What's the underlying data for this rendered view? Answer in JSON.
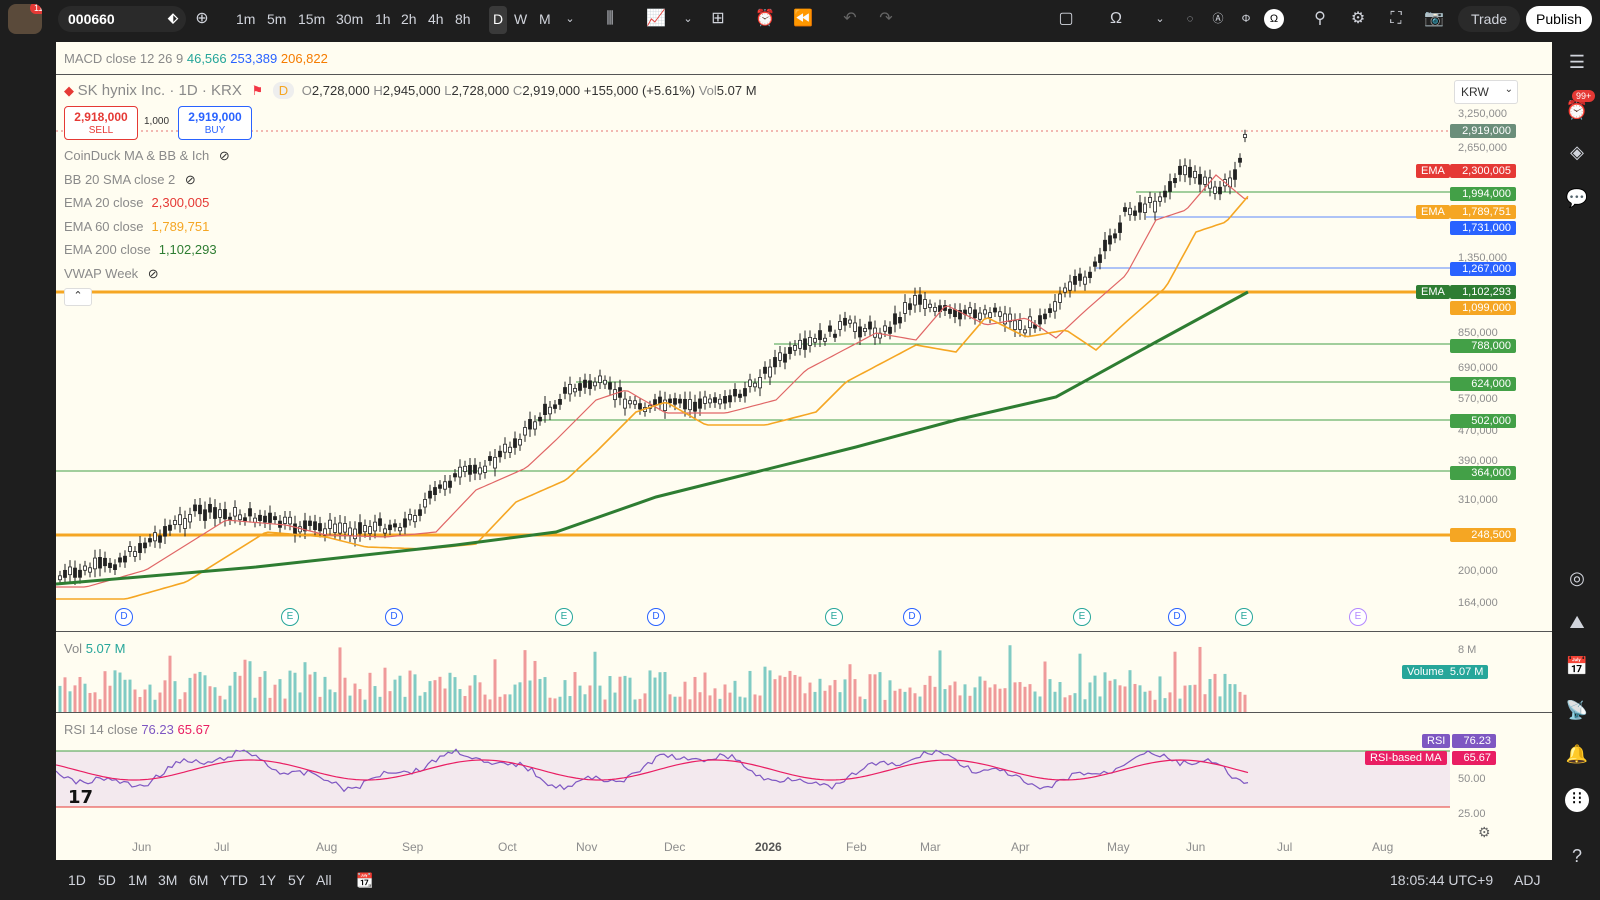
{
  "topbar": {
    "notif_count": "11",
    "symbol": "000660",
    "timeframes": [
      "1m",
      "5m",
      "15m",
      "30m",
      "1h",
      "2h",
      "4h",
      "8h",
      "D",
      "W",
      "M"
    ],
    "active_timeframe": "D",
    "trade": "Trade",
    "publish": "Publish"
  },
  "macd": {
    "label": "MACD close 12 26 9",
    "v1": "46,566",
    "v2": "253,389",
    "v3": "206,822"
  },
  "header": {
    "name": "SK hynix Inc. · 1D · KRX",
    "flag_d": "D",
    "o_label": "O",
    "o": "2,728,000",
    "h_label": "H",
    "h": "2,945,000",
    "l_label": "L",
    "l": "2,728,000",
    "c_label": "C",
    "c": "2,919,000",
    "chg": "+155,000 (+5.61%)",
    "vol_label": "Vol",
    "vol": "5.07 M",
    "currency": "KRW"
  },
  "order": {
    "sell_price": "2,918,000",
    "sell": "SELL",
    "qty": "1,000",
    "buy_price": "2,919,000",
    "buy": "BUY"
  },
  "indicators": [
    {
      "label": "CoinDuck MA & BB & Ich",
      "value": "",
      "color": "#8a8a8a"
    },
    {
      "label": "BB 20 SMA close 2",
      "value": "",
      "color": "#8a8a8a"
    },
    {
      "label": "EMA 20 close",
      "value": "2,300,005",
      "color": "#e53935"
    },
    {
      "label": "EMA 60 close",
      "value": "1,789,751",
      "color": "#f5a623"
    },
    {
      "label": "EMA 200 close",
      "value": "1,102,293",
      "color": "#2e7d32"
    },
    {
      "label": "VWAP Week",
      "value": "",
      "color": "#8a8a8a"
    }
  ],
  "price_ticks": [
    "3,250,000",
    "2,650,000",
    "1,350,000",
    "850,000",
    "690,000",
    "570,000",
    "470,000",
    "390,000",
    "310,000",
    "200,000",
    "164,000"
  ],
  "price_labels": [
    {
      "text": "2,919,000",
      "color": "#6b8e7a",
      "prefix": ""
    },
    {
      "text": "2,300,005",
      "color": "#e53935",
      "prefix": "EMA"
    },
    {
      "text": "1,994,000",
      "color": "#43a047",
      "prefix": ""
    },
    {
      "text": "1,789,751",
      "color": "#f5a623",
      "prefix": "EMA"
    },
    {
      "text": "1,731,000",
      "color": "#2962ff",
      "prefix": ""
    },
    {
      "text": "1,267,000",
      "color": "#2962ff",
      "prefix": ""
    },
    {
      "text": "1,102,293",
      "color": "#2e7d32",
      "prefix": "EMA"
    },
    {
      "text": "1,099,000",
      "color": "#f5a623",
      "prefix": ""
    },
    {
      "text": "788,000",
      "color": "#43a047",
      "prefix": ""
    },
    {
      "text": "624,000",
      "color": "#43a047",
      "prefix": ""
    },
    {
      "text": "502,000",
      "color": "#43a047",
      "prefix": ""
    },
    {
      "text": "364,000",
      "color": "#43a047",
      "prefix": ""
    },
    {
      "text": "248,500",
      "color": "#f5a623",
      "prefix": ""
    }
  ],
  "events": [
    "D",
    "E",
    "D",
    "E",
    "D",
    "E",
    "D",
    "E",
    "D",
    "E",
    "E"
  ],
  "volume": {
    "label": "Vol",
    "value": "5.07 M",
    "tick": "8 M",
    "tag": "Volume",
    "tag_value": "5.07 M"
  },
  "rsi": {
    "label": "RSI 14 close",
    "v1": "76.23",
    "v2": "65.67",
    "tag1": "RSI",
    "tag2": "RSI-based MA",
    "ticks": [
      "50.00",
      "25.00"
    ]
  },
  "x_axis": [
    "Jun",
    "Jul",
    "Aug",
    "Sep",
    "Oct",
    "Nov",
    "Dec",
    "2026",
    "Feb",
    "Mar",
    "Apr",
    "May",
    "Jun",
    "Jul",
    "Aug"
  ],
  "bottom": {
    "ranges": [
      "1D",
      "5D",
      "1M",
      "3M",
      "6M",
      "YTD",
      "1Y",
      "5Y",
      "All"
    ],
    "clock": "18:05:44 UTC+9",
    "adj": "ADJ"
  },
  "rightbar": {
    "badge": "99+"
  },
  "colors": {
    "bg": "#fffdf1",
    "up": "#26a69a",
    "down": "#ef5350",
    "ema20": "#e06666",
    "ema60": "#f5a623",
    "ema200": "#2e7d32"
  }
}
